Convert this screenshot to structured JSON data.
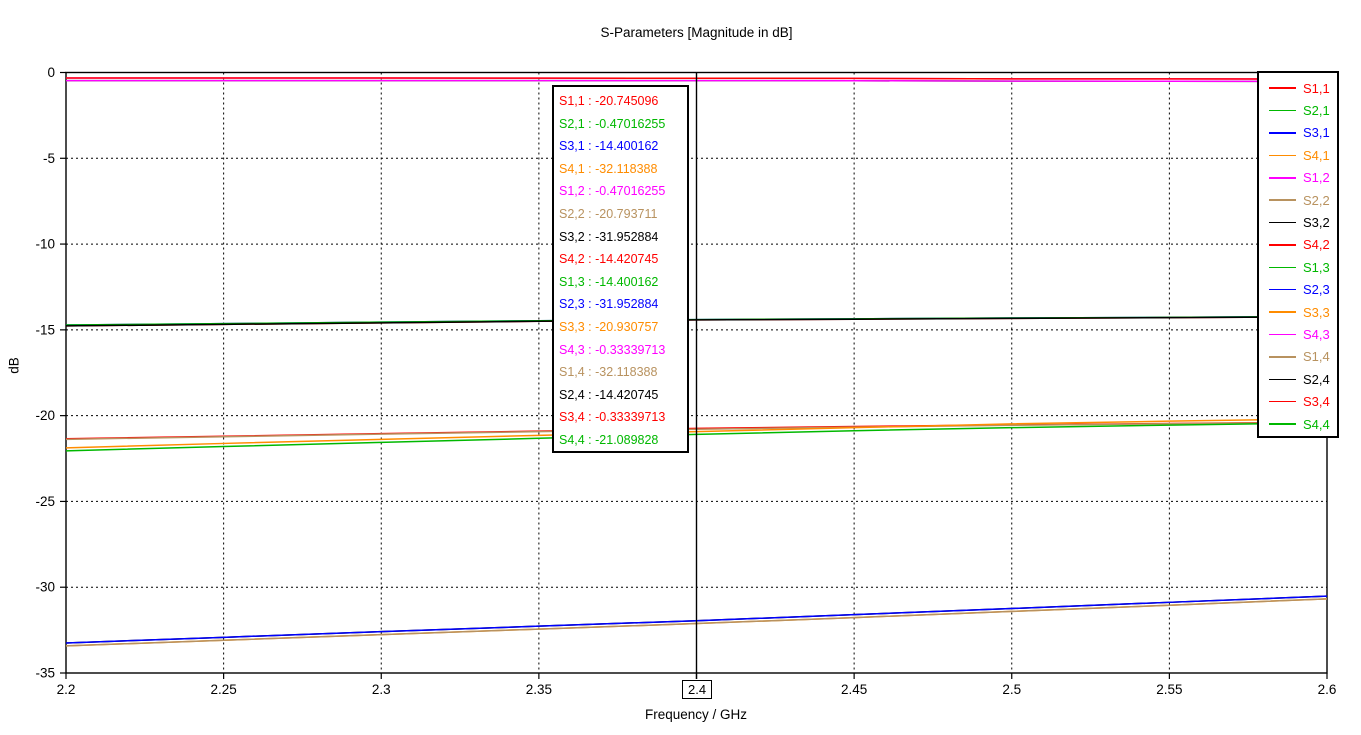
{
  "title": "S-Parameters [Magnitude in dB]",
  "axes": {
    "x_label": "Frequency / GHz",
    "y_label": "dB",
    "x_ticks": [
      {
        "value": 2.2,
        "label": "2.2"
      },
      {
        "value": 2.25,
        "label": "2.25"
      },
      {
        "value": 2.3,
        "label": "2.3"
      },
      {
        "value": 2.35,
        "label": "2.35"
      },
      {
        "value": 2.4,
        "label": "2.4",
        "boxed": true
      },
      {
        "value": 2.45,
        "label": "2.45"
      },
      {
        "value": 2.5,
        "label": "2.5"
      },
      {
        "value": 2.55,
        "label": "2.55"
      },
      {
        "value": 2.6,
        "label": "2.6"
      }
    ],
    "y_ticks": [
      {
        "value": 0,
        "label": "0"
      },
      {
        "value": -5,
        "label": "-5"
      },
      {
        "value": -10,
        "label": "-10"
      },
      {
        "value": -15,
        "label": "-15"
      },
      {
        "value": -20,
        "label": "-20"
      },
      {
        "value": -25,
        "label": "-25"
      },
      {
        "value": -30,
        "label": "-30"
      },
      {
        "value": -35,
        "label": "-35"
      }
    ]
  },
  "marker": {
    "freq_label": "2.4",
    "freq": 2.4,
    "readouts": [
      {
        "label": "S1,1",
        "value": "-20.745096",
        "text": "S1,1 : -20.745096",
        "color": "#FF0000"
      },
      {
        "label": "S2,1",
        "value": "-0.47016255",
        "text": "S2,1 : -0.47016255",
        "color": "#00B800"
      },
      {
        "label": "S3,1",
        "value": "-14.400162",
        "text": "S3,1 : -14.400162",
        "color": "#0000FF"
      },
      {
        "label": "S4,1",
        "value": "-32.118388",
        "text": "S4,1 : -32.118388",
        "color": "#FF8C00"
      },
      {
        "label": "S1,2",
        "value": "-0.47016255",
        "text": "S1,2 : -0.47016255",
        "color": "#FF00FF"
      },
      {
        "label": "S2,2",
        "value": "-20.793711",
        "text": "S2,2 : -20.793711",
        "color": "#B8925F"
      },
      {
        "label": "S3,2",
        "value": "-31.952884",
        "text": "S3,2 : -31.952884",
        "color": "#000000"
      },
      {
        "label": "S4,2",
        "value": "-14.420745",
        "text": "S4,2 : -14.420745",
        "color": "#FF0000"
      },
      {
        "label": "S1,3",
        "value": "-14.400162",
        "text": "S1,3 : -14.400162",
        "color": "#00B800"
      },
      {
        "label": "S2,3",
        "value": "-31.952884",
        "text": "S2,3 : -31.952884",
        "color": "#0000FF"
      },
      {
        "label": "S3,3",
        "value": "-20.930757",
        "text": "S3,3 : -20.930757",
        "color": "#FF8C00"
      },
      {
        "label": "S4,3",
        "value": "-0.33339713",
        "text": "S4,3 : -0.33339713",
        "color": "#FF00FF"
      },
      {
        "label": "S1,4",
        "value": "-32.118388",
        "text": "S1,4 : -32.118388",
        "color": "#B8925F"
      },
      {
        "label": "S2,4",
        "value": "-14.420745",
        "text": "S2,4 : -14.420745",
        "color": "#000000"
      },
      {
        "label": "S3,4",
        "value": "-0.33339713",
        "text": "S3,4 : -0.33339713",
        "color": "#FF0000"
      },
      {
        "label": "S4,4",
        "value": "-21.089828",
        "text": "S4,4 : -21.089828",
        "color": "#00B800"
      }
    ]
  },
  "legend": {
    "entries": [
      {
        "label": "S1,1",
        "color": "#FF0000"
      },
      {
        "label": "S2,1",
        "color": "#00B800"
      },
      {
        "label": "S3,1",
        "color": "#0000FF"
      },
      {
        "label": "S4,1",
        "color": "#FF8C00"
      },
      {
        "label": "S1,2",
        "color": "#FF00FF"
      },
      {
        "label": "S2,2",
        "color": "#B8925F"
      },
      {
        "label": "S3,2",
        "color": "#000000"
      },
      {
        "label": "S4,2",
        "color": "#FF0000"
      },
      {
        "label": "S1,3",
        "color": "#00B800"
      },
      {
        "label": "S2,3",
        "color": "#0000FF"
      },
      {
        "label": "S3,3",
        "color": "#FF8C00"
      },
      {
        "label": "S4,3",
        "color": "#FF00FF"
      },
      {
        "label": "S1,4",
        "color": "#B8925F"
      },
      {
        "label": "S2,4",
        "color": "#000000"
      },
      {
        "label": "S3,4",
        "color": "#FF0000"
      },
      {
        "label": "S4,4",
        "color": "#00B800"
      }
    ]
  },
  "chart_data": {
    "type": "line",
    "title": "S-Parameters [Magnitude in dB]",
    "xlabel": "Frequency / GHz",
    "ylabel": "dB",
    "xlim": [
      2.2,
      2.6
    ],
    "ylim": [
      -35,
      0
    ],
    "grid": "dashed",
    "legend_position": "right",
    "marker_freq": 2.4,
    "x": [
      2.2,
      2.25,
      2.3,
      2.35,
      2.4,
      2.45,
      2.5,
      2.55,
      2.6
    ],
    "series": [
      {
        "name": "S1,1",
        "color": "#FF0000",
        "values": [
          -21.35,
          -21.2,
          -21.05,
          -20.9,
          -20.745096,
          -20.63,
          -20.54,
          -20.46,
          -20.38
        ]
      },
      {
        "name": "S2,1",
        "color": "#00B800",
        "values": [
          -0.47,
          -0.47,
          -0.47,
          -0.47,
          -0.47016255,
          -0.48,
          -0.5,
          -0.51,
          -0.52
        ]
      },
      {
        "name": "S3,1",
        "color": "#0000FF",
        "values": [
          -14.72,
          -14.64,
          -14.55,
          -14.47,
          -14.400162,
          -14.36,
          -14.31,
          -14.27,
          -14.22
        ]
      },
      {
        "name": "S4,1",
        "color": "#FF8C00",
        "values": [
          -33.42,
          -33.09,
          -32.76,
          -32.44,
          -32.118388,
          -31.77,
          -31.41,
          -31.05,
          -30.68
        ]
      },
      {
        "name": "S1,2",
        "color": "#FF00FF",
        "values": [
          -0.47,
          -0.47,
          -0.47,
          -0.47,
          -0.47016255,
          -0.48,
          -0.5,
          -0.51,
          -0.52
        ]
      },
      {
        "name": "S2,2",
        "color": "#B8925F",
        "values": [
          -21.38,
          -21.23,
          -21.08,
          -20.93,
          -20.793711,
          -20.67,
          -20.56,
          -20.47,
          -20.4
        ]
      },
      {
        "name": "S3,2",
        "color": "#000000",
        "values": [
          -33.25,
          -32.92,
          -32.59,
          -32.27,
          -31.952884,
          -31.6,
          -31.24,
          -30.88,
          -30.52
        ]
      },
      {
        "name": "S4,2",
        "color": "#FF0000",
        "values": [
          -14.77,
          -14.68,
          -14.59,
          -14.5,
          -14.420745,
          -14.38,
          -14.33,
          -14.29,
          -14.24
        ]
      },
      {
        "name": "S1,3",
        "color": "#00B800",
        "values": [
          -14.72,
          -14.64,
          -14.55,
          -14.47,
          -14.400162,
          -14.36,
          -14.31,
          -14.27,
          -14.22
        ]
      },
      {
        "name": "S2,3",
        "color": "#0000FF",
        "values": [
          -33.25,
          -32.92,
          -32.59,
          -32.27,
          -31.952884,
          -31.6,
          -31.24,
          -30.88,
          -30.52
        ]
      },
      {
        "name": "S3,3",
        "color": "#FF8C00",
        "values": [
          -21.88,
          -21.62,
          -21.38,
          -21.15,
          -20.930757,
          -20.7,
          -20.48,
          -20.32,
          -20.18
        ]
      },
      {
        "name": "S4,3",
        "color": "#FF00FF",
        "values": [
          -0.32,
          -0.32,
          -0.32,
          -0.33,
          -0.33339713,
          -0.34,
          -0.37,
          -0.37,
          -0.38
        ]
      },
      {
        "name": "S1,4",
        "color": "#B8925F",
        "values": [
          -33.42,
          -33.09,
          -32.76,
          -32.44,
          -32.118388,
          -31.77,
          -31.41,
          -31.05,
          -30.68
        ]
      },
      {
        "name": "S2,4",
        "color": "#000000",
        "values": [
          -14.77,
          -14.68,
          -14.59,
          -14.5,
          -14.420745,
          -14.38,
          -14.33,
          -14.29,
          -14.24
        ]
      },
      {
        "name": "S3,4",
        "color": "#FF0000",
        "values": [
          -0.32,
          -0.32,
          -0.32,
          -0.33,
          -0.33339713,
          -0.34,
          -0.37,
          -0.37,
          -0.38
        ]
      },
      {
        "name": "S4,4",
        "color": "#00B800",
        "values": [
          -22.05,
          -21.8,
          -21.56,
          -21.32,
          -21.089828,
          -20.88,
          -20.7,
          -20.55,
          -20.42
        ]
      }
    ]
  }
}
